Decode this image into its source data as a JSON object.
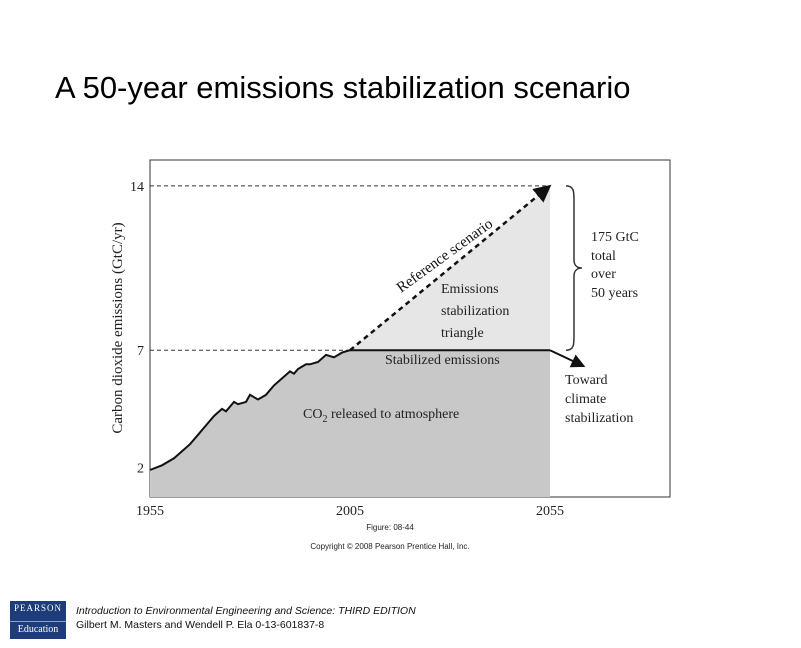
{
  "slide": {
    "title": "A 50-year emissions stabilization scenario"
  },
  "chart_data": {
    "type": "area",
    "title": "",
    "ylabel": "Carbon dioxide emissions (GtC/yr)",
    "xlabel": "",
    "x_ticks": [
      1955,
      2005,
      2055
    ],
    "y_ticks": [
      2,
      7,
      14
    ],
    "xlim": [
      1955,
      2085
    ],
    "ylim": [
      0.75,
      15.1
    ],
    "series": [
      {
        "name": "CO2 released to atmosphere",
        "x": [
          1955,
          1958,
          1961,
          1963,
          1965,
          1967,
          1969,
          1971,
          1973,
          1974,
          1975,
          1976,
          1977,
          1979,
          1980,
          1981,
          1982,
          1984,
          1986,
          1988,
          1990,
          1991,
          1992,
          1994,
          1995,
          1997,
          1999,
          2001,
          2003,
          2005
        ],
        "y": [
          1.9,
          2.1,
          2.4,
          2.7,
          3.0,
          3.4,
          3.8,
          4.2,
          4.5,
          4.4,
          4.6,
          4.8,
          4.7,
          4.8,
          5.1,
          5.0,
          4.9,
          5.1,
          5.5,
          5.8,
          6.1,
          6.0,
          6.2,
          6.4,
          6.4,
          6.5,
          6.8,
          6.7,
          6.9,
          7.0
        ]
      },
      {
        "name": "Stabilized emissions",
        "x": [
          2005,
          2055
        ],
        "y": [
          7,
          7
        ]
      },
      {
        "name": "Reference scenario",
        "x": [
          2005,
          2055
        ],
        "y": [
          7,
          14
        ]
      }
    ],
    "annotations": {
      "reference": "Reference scenario",
      "triangle": [
        "Emissions",
        "stabilization",
        "triangle"
      ],
      "stabilized": "Stabilized emissions",
      "co2_main": "CO",
      "co2_sub": "2",
      "co2_rest": " released to atmosphere",
      "total": [
        "175 GtC",
        "total",
        "over",
        "50 years"
      ],
      "toward": [
        "Toward",
        "climate",
        "stabilization"
      ]
    },
    "colors": {
      "area": "#c8c8c8",
      "triangle": "#e6e6e6",
      "line": "#111111"
    }
  },
  "caption": {
    "figure": "Figure: 08-44",
    "copyright": "Copyright © 2008 Pearson Prentice Hall, Inc."
  },
  "logo": {
    "line1": "PEARSON",
    "line2": "Education"
  },
  "footer": {
    "line1": "Introduction to Environmental Engineering and Science: THIRD EDITION",
    "line2": "Gilbert M. Masters and Wendell P. Ela 0-13-601837-8"
  }
}
